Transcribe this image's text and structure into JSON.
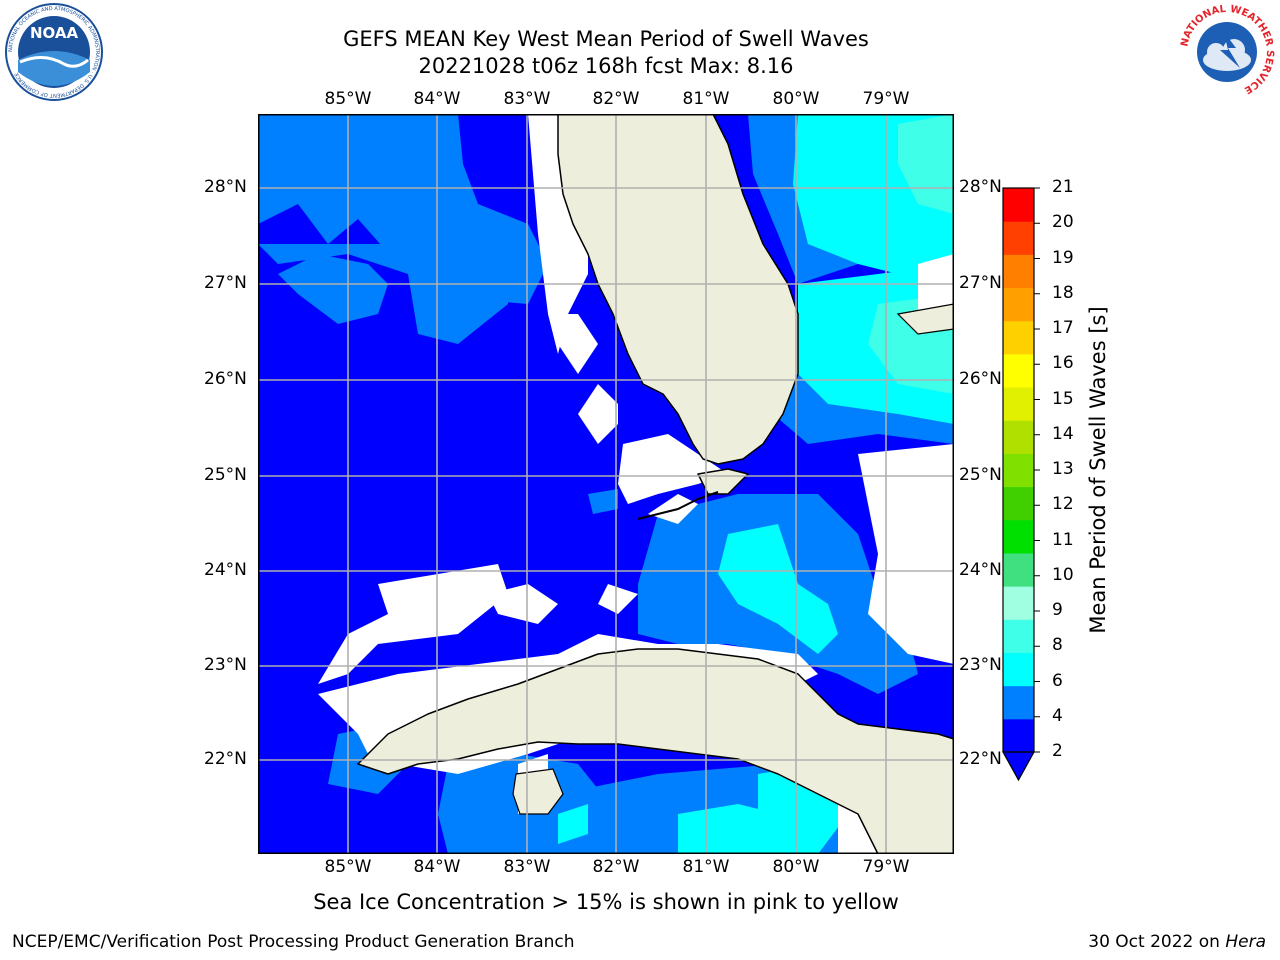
{
  "title": {
    "line1": "GEFS MEAN Key West Mean Period of Swell Waves",
    "line2": "20221028 t06z 168h fcst   Max: 8.16"
  },
  "map": {
    "lon_labels": [
      "85°W",
      "84°W",
      "83°W",
      "82°W",
      "81°W",
      "80°W",
      "79°W"
    ],
    "lat_labels": [
      "28°N",
      "27°N",
      "26°N",
      "25°N",
      "24°N",
      "23°N",
      "22°N"
    ],
    "colors": {
      "ocean_low": "#0000ff",
      "ocean_mid": "#0080ff",
      "ocean_high": "#00ffff",
      "ocean_top": "#40ffe8",
      "land": "#eeeedd",
      "gridline": "#b0b0b0"
    }
  },
  "colorbar": {
    "label": "Mean Period of Swell Waves [s]",
    "ticks": [
      "2",
      "4",
      "6",
      "8",
      "9",
      "10",
      "11",
      "12",
      "13",
      "14",
      "15",
      "16",
      "17",
      "18",
      "19",
      "20",
      "21"
    ],
    "colors": [
      "#0000ff",
      "#0080ff",
      "#00ffff",
      "#40ffe8",
      "#a0ffe0",
      "#40e080",
      "#00e000",
      "#40d000",
      "#80e000",
      "#b0e000",
      "#e0f000",
      "#ffff00",
      "#ffd000",
      "#ffa000",
      "#ff8000",
      "#ff4000",
      "#ff0000"
    ]
  },
  "note": "Sea Ice Concentration > 15% is shown in pink to yellow",
  "footer": {
    "left": "NCEP/EMC/Verification Post Processing Product Generation Branch",
    "date": "30 Oct 2022 on",
    "host": "Hera"
  },
  "logos": {
    "noaa_text": "NOAA",
    "noaa_ring": "NATIONAL OCEANIC AND ATMOSPHERIC ADMINISTRATION · U.S. DEPARTMENT OF COMMERCE",
    "nws_ring": "NATIONAL WEATHER SERVICE"
  }
}
